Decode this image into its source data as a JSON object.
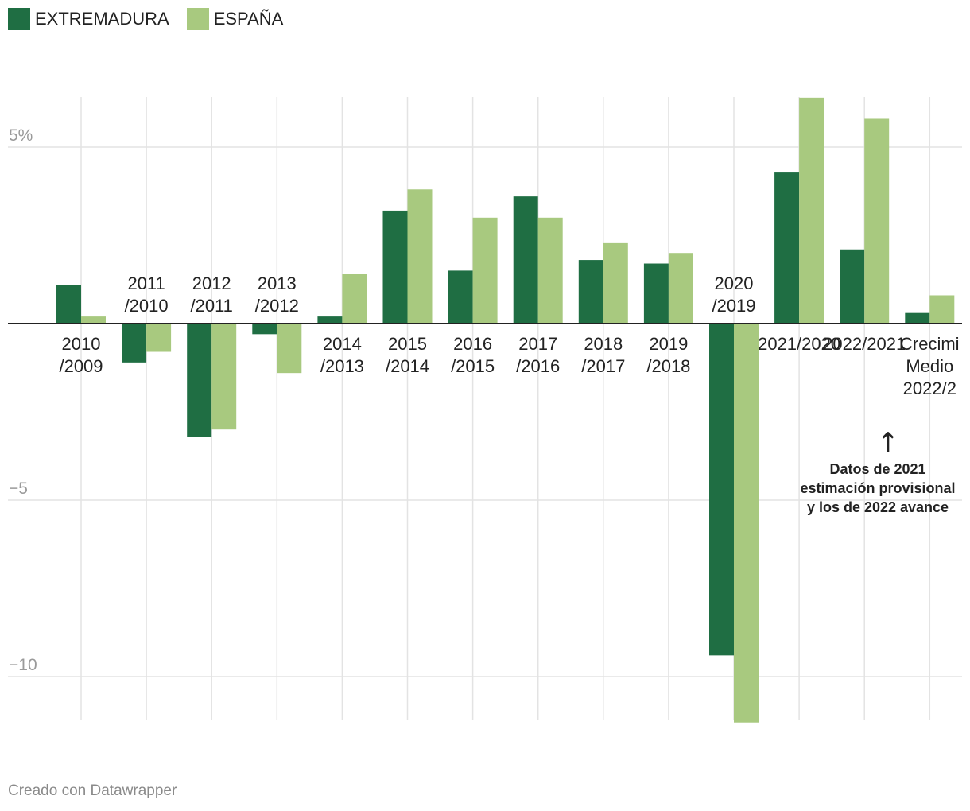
{
  "legend": [
    {
      "name": "EXTREMADURA",
      "color": "#1f6e43"
    },
    {
      "name": "ESPAÑA",
      "color": "#a8c97f"
    }
  ],
  "chart_data": {
    "type": "bar",
    "categories": [
      [
        "2010",
        "/2009"
      ],
      [
        "2011",
        "/2010"
      ],
      [
        "2012",
        "/2011"
      ],
      [
        "2013",
        "/2012"
      ],
      [
        "2014",
        "/2013"
      ],
      [
        "2015",
        "/2014"
      ],
      [
        "2016",
        "/2015"
      ],
      [
        "2017",
        "/2016"
      ],
      [
        "2018",
        "/2017"
      ],
      [
        "2019",
        "/2018"
      ],
      [
        "2020",
        "/2019"
      ],
      [
        "2021/2020"
      ],
      [
        "2022/2021"
      ],
      [
        "Crecimi",
        "Medio",
        "2022/2"
      ]
    ],
    "series": [
      {
        "name": "EXTREMADURA",
        "values": [
          1.1,
          -1.1,
          -3.2,
          -0.3,
          0.2,
          3.2,
          1.5,
          3.6,
          1.8,
          1.7,
          -9.4,
          4.3,
          2.1,
          0.3
        ]
      },
      {
        "name": "ESPAÑA",
        "values": [
          0.2,
          -0.8,
          -3.0,
          -1.4,
          1.4,
          3.8,
          3.0,
          3.0,
          2.3,
          2.0,
          -11.3,
          6.4,
          5.8,
          0.8
        ]
      }
    ],
    "ylim": [
      -11.3,
      6.4
    ],
    "yticks": [
      {
        "value": 5,
        "label": "5%"
      },
      {
        "value": -5,
        "label": "−5"
      },
      {
        "value": -10,
        "label": "−10"
      }
    ],
    "annotation": "Datos de 2021 estimación provisional y los de 2022 avance",
    "annotation_arrow": "↑"
  },
  "footer": "Creado con Datawrapper"
}
